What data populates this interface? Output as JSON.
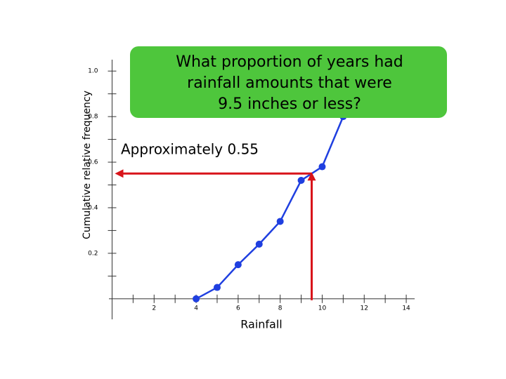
{
  "chart_data": {
    "type": "line",
    "x_label": "Rainfall",
    "y_label": "Cumulative relative frequency",
    "x": [
      4,
      5,
      6,
      7,
      8,
      9,
      10,
      11
    ],
    "series": [
      {
        "color": "#1f3fe0",
        "values": [
          0,
          0.05,
          0.15,
          0.24,
          0.34,
          0.52,
          0.58,
          0.8
        ]
      }
    ],
    "xlim": [
      -0.15,
      14.4
    ],
    "ylim": [
      -0.09,
      1.05
    ],
    "xticks": [
      2,
      4,
      6,
      8,
      10,
      12,
      14
    ],
    "xminorticks": [
      1,
      3,
      5,
      7,
      9,
      11,
      13
    ],
    "yticks": [
      0.2,
      0.4,
      0.6,
      {
        "value": 1,
        "label": "1.0"
      },
      0.8
    ],
    "yminorticks": [
      0.1,
      0.3,
      0.5,
      0.7,
      0.9
    ],
    "question": [
      "What proportion of years had",
      "rainfall amounts that were",
      "9.5 inches or less?"
    ],
    "question_color": "#4ec63c",
    "answer": "Approximately 0.55",
    "reference": {
      "x": 9.5,
      "y": 0.55,
      "color": "#d8141a"
    }
  }
}
